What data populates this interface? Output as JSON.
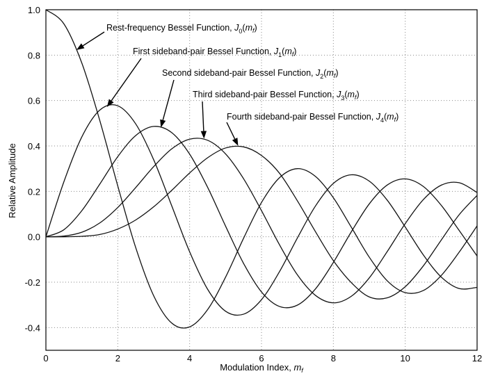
{
  "chart_data": {
    "type": "line",
    "title": "",
    "xlabel": "Modulation Index, m_f",
    "xlabel_parts": {
      "text": "Modulation Index, ",
      "symbol": "m",
      "sub": "f"
    },
    "ylabel": "Relative Amplitude",
    "xlim": [
      0,
      12
    ],
    "ylim": [
      -0.5,
      1.0
    ],
    "x_ticks": [
      "0",
      "2",
      "4",
      "6",
      "8",
      "10",
      "12"
    ],
    "y_ticks": [
      "-0.4",
      "-0.2",
      "0.0",
      "0.2",
      "0.4",
      "0.6",
      "0.8",
      "1.0"
    ],
    "grid": true,
    "series": [
      {
        "order": 0,
        "name": "Rest-frequency Bessel Function, J0(mf)"
      },
      {
        "order": 1,
        "name": "First sideband-pair Bessel Function, J1(mf)"
      },
      {
        "order": 2,
        "name": "Second sideband-pair Bessel Function, J2(mf)"
      },
      {
        "order": 3,
        "name": "Third sideband-pair Bessel Function, J3(mf)"
      },
      {
        "order": 4,
        "name": "Fourth sideband-pair Bessel Function, J4(mf)"
      }
    ],
    "x": [
      0,
      0.5,
      1,
      1.5,
      2,
      2.5,
      3,
      3.5,
      4,
      4.5,
      5,
      5.5,
      6,
      6.5,
      7,
      7.5,
      8,
      8.5,
      9,
      9.5,
      10,
      10.5,
      11,
      11.5,
      12
    ],
    "values": {
      "J0": [
        1.0,
        0.938,
        0.765,
        0.512,
        0.224,
        -0.048,
        -0.26,
        -0.38,
        -0.397,
        -0.321,
        -0.178,
        -0.007,
        0.151,
        0.26,
        0.3,
        0.266,
        0.172,
        0.042,
        -0.09,
        -0.194,
        -0.246,
        -0.237,
        -0.171,
        -0.068,
        0.048
      ],
      "J1": [
        0.0,
        0.242,
        0.44,
        0.558,
        0.577,
        0.497,
        0.339,
        0.137,
        -0.066,
        -0.231,
        -0.328,
        -0.341,
        -0.277,
        -0.154,
        -0.005,
        0.135,
        0.235,
        0.273,
        0.245,
        0.161,
        0.043,
        -0.079,
        -0.177,
        -0.228,
        -0.223
      ],
      "J2": [
        0.0,
        0.031,
        0.115,
        0.232,
        0.353,
        0.446,
        0.486,
        0.459,
        0.364,
        0.218,
        0.047,
        -0.117,
        -0.243,
        -0.307,
        -0.301,
        -0.23,
        -0.113,
        0.022,
        0.145,
        0.228,
        0.255,
        0.222,
        0.139,
        0.028,
        -0.085
      ],
      "J3": [
        0.0,
        0.003,
        0.02,
        0.061,
        0.129,
        0.217,
        0.309,
        0.387,
        0.43,
        0.425,
        0.365,
        0.256,
        0.115,
        -0.035,
        -0.168,
        -0.258,
        -0.291,
        -0.262,
        -0.181,
        -0.065,
        0.058,
        0.163,
        0.227,
        0.238,
        0.195
      ],
      "J4": [
        0.0,
        0.0,
        0.002,
        0.01,
        0.034,
        0.074,
        0.132,
        0.204,
        0.281,
        0.348,
        0.391,
        0.396,
        0.358,
        0.28,
        0.158,
        0.023,
        -0.105,
        -0.202,
        -0.265,
        -0.269,
        -0.22,
        -0.129,
        -0.015,
        0.097,
        0.182
      ]
    },
    "annotations": [
      {
        "series": "J0",
        "text": "Rest-frequency Bessel Function, ",
        "symbol": "J",
        "sub": "0",
        "arg": "m",
        "argsub": "f",
        "points_to_x": 0.85
      },
      {
        "series": "J1",
        "text": "First  sideband-pair Bessel Function, ",
        "symbol": "J",
        "sub": "1",
        "arg": "m",
        "argsub": "f",
        "points_to_x": 1.7
      },
      {
        "series": "J2",
        "text": "Second  sideband-pair Bessel Function, ",
        "symbol": "J",
        "sub": "2",
        "arg": "m",
        "argsub": "f",
        "points_to_x": 3.2
      },
      {
        "series": "J3",
        "text": "Third  sideband-pair Bessel Function, ",
        "symbol": "J",
        "sub": "3",
        "arg": "m",
        "argsub": "f",
        "points_to_x": 4.4
      },
      {
        "series": "J4",
        "text": "Fourth  sideband-pair Bessel Function, ",
        "symbol": "J",
        "sub": "4",
        "arg": "m",
        "argsub": "f",
        "points_to_x": 5.35
      }
    ]
  }
}
